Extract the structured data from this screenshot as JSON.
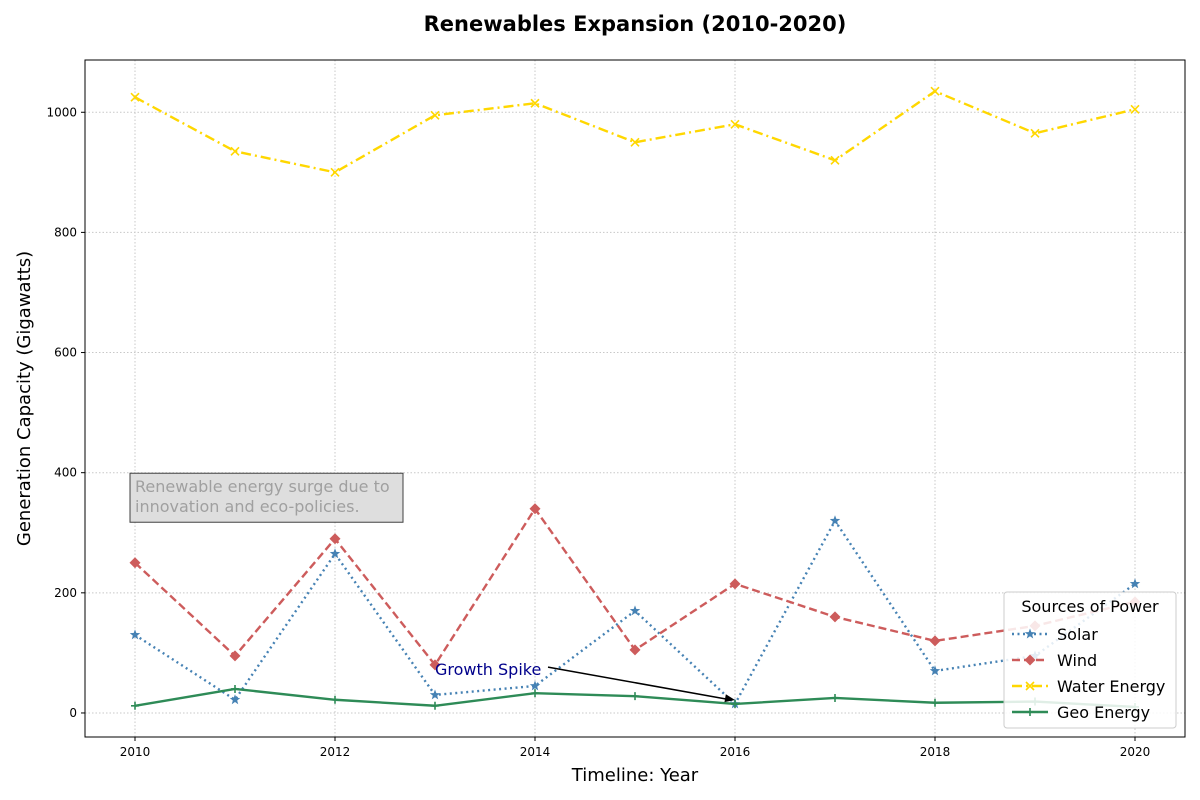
{
  "chart_data": {
    "type": "line",
    "title": "Renewables Expansion (2010-2020)",
    "xlabel": "Timeline: Year",
    "ylabel": "Generation Capacity (Gigawatts)",
    "x": [
      2010,
      2011,
      2012,
      2013,
      2014,
      2015,
      2016,
      2017,
      2018,
      2019,
      2020
    ],
    "xlim": [
      2009.5,
      2020.5
    ],
    "ylim": [
      -40,
      1087
    ],
    "xticks": [
      2010,
      2012,
      2014,
      2016,
      2018,
      2020
    ],
    "yticks": [
      0,
      200,
      400,
      600,
      800,
      1000
    ],
    "grid": true,
    "legend": {
      "title": "Sources of Power",
      "placement": "bottom-right"
    },
    "series": [
      {
        "name": "Solar",
        "color": "#4682b4",
        "line_style": "dotted",
        "marker": "star",
        "values": [
          130,
          22,
          265,
          30,
          45,
          170,
          15,
          320,
          70,
          95,
          215
        ]
      },
      {
        "name": "Wind",
        "color": "#cd5c5c",
        "line_style": "dashed",
        "marker": "diamond",
        "values": [
          250,
          95,
          290,
          80,
          340,
          105,
          215,
          160,
          120,
          145,
          185
        ]
      },
      {
        "name": "Water Energy",
        "color": "#ffd700",
        "line_style": "dashdot",
        "marker": "x",
        "values": [
          1025,
          935,
          900,
          995,
          1015,
          950,
          980,
          920,
          1035,
          965,
          1005
        ]
      },
      {
        "name": "Geo Energy",
        "color": "#2e8b57",
        "line_style": "solid",
        "marker": "plus",
        "values": [
          12,
          40,
          22,
          12,
          33,
          28,
          15,
          25,
          17,
          19,
          10
        ]
      }
    ],
    "annotations": [
      {
        "text": "Renewable energy surge due to\ninnovation and eco-policies.",
        "x": 2010,
        "y": 330,
        "boxed": true
      },
      {
        "text": "Growth Spike",
        "x": 2016,
        "y": 15,
        "text_x": 2013,
        "text_y": 63,
        "arrow": true
      }
    ]
  }
}
